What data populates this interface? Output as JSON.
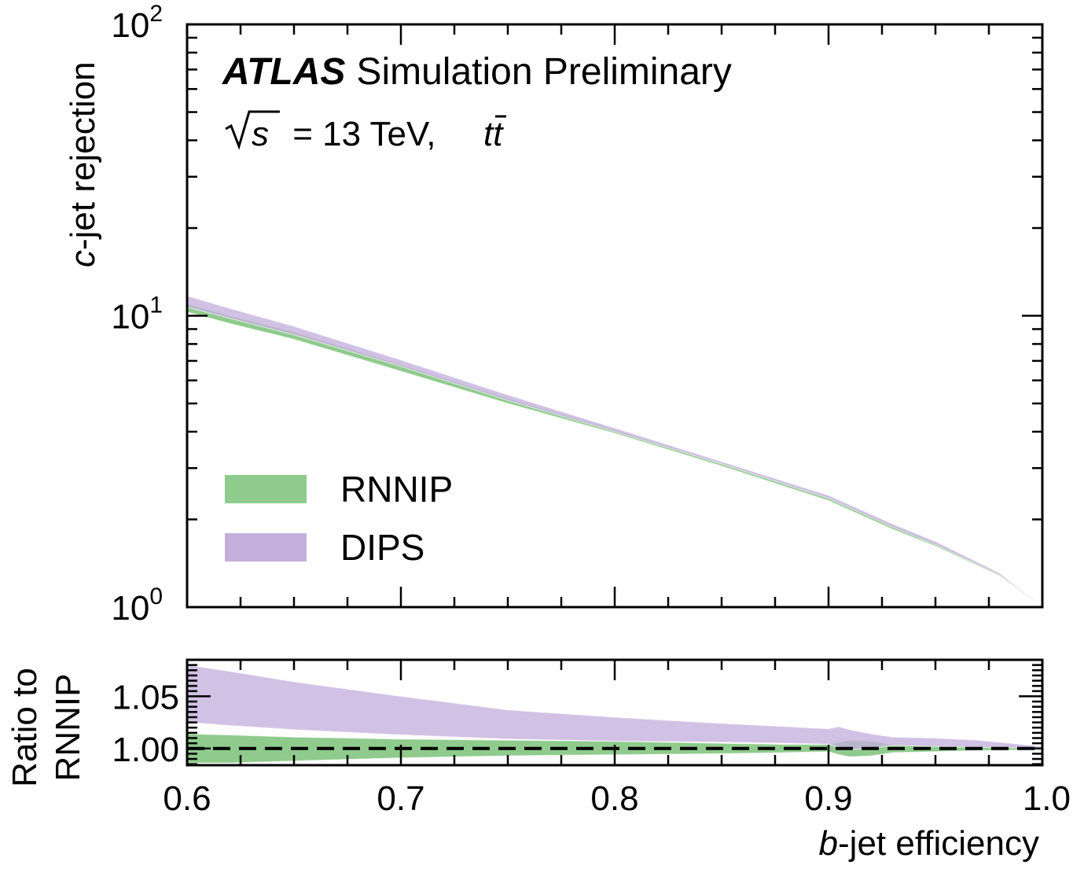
{
  "chart_data": [
    {
      "type": "area",
      "panel": "main",
      "ylabel_italic": "c",
      "ylabel_rest": "-jet rejection",
      "yscale": "log",
      "xlim": [
        0.6,
        1.0
      ],
      "ylim": [
        1,
        100
      ],
      "ytick_labels": [
        {
          "value": 1,
          "base": "10",
          "exp": "0"
        },
        {
          "value": 10,
          "base": "10",
          "exp": "1"
        },
        {
          "value": 100,
          "base": "10",
          "exp": "2"
        }
      ],
      "annotation": {
        "experiment": "ATLAS",
        "status": "Simulation Preliminary",
        "energy_sqrt": "s",
        "energy_rest": " = 13 TeV, ",
        "process": "tt"
      },
      "legend_placement": "lower-left",
      "x": [
        0.6,
        0.62,
        0.65,
        0.7,
        0.75,
        0.8,
        0.85,
        0.9,
        0.93,
        0.95,
        0.98,
        1.0
      ],
      "series": [
        {
          "name": "RNNIP",
          "color": "#8fcb8c",
          "lower": [
            10.3,
            9.4,
            8.3,
            6.45,
            5.0,
            3.95,
            3.05,
            2.32,
            1.85,
            1.62,
            1.28,
            1.0
          ],
          "upper": [
            11.0,
            10.0,
            8.8,
            6.8,
            5.2,
            4.05,
            3.12,
            2.38,
            1.9,
            1.66,
            1.3,
            1.0
          ]
        },
        {
          "name": "DIPS",
          "color": "#c4afdc",
          "lower": [
            10.7,
            9.8,
            8.6,
            6.7,
            5.12,
            4.0,
            3.1,
            2.36,
            1.88,
            1.64,
            1.29,
            1.0
          ],
          "upper": [
            11.7,
            10.6,
            9.2,
            7.05,
            5.35,
            4.12,
            3.16,
            2.42,
            1.93,
            1.68,
            1.31,
            1.0
          ]
        }
      ]
    },
    {
      "type": "area",
      "panel": "ratio",
      "xlabel_italic": "b",
      "xlabel_rest": "-jet efficiency",
      "ylabel_line1": "Ratio to",
      "ylabel_line2": "RNNIP",
      "xlim": [
        0.6,
        1.0
      ],
      "ylim": [
        0.984,
        1.085
      ],
      "xtick_labels": [
        "0.6",
        "0.7",
        "0.8",
        "0.9",
        "1.0"
      ],
      "ytick_labels": [
        "1.00",
        "1.05"
      ],
      "reference_line": 1.0,
      "x": [
        0.6,
        0.62,
        0.65,
        0.7,
        0.75,
        0.8,
        0.85,
        0.88,
        0.9,
        0.905,
        0.91,
        0.92,
        0.93,
        0.95,
        0.97,
        0.98,
        1.0
      ],
      "series": [
        {
          "name": "RNNIP",
          "color": "#8fcb8c",
          "lower": [
            0.986,
            0.986,
            0.988,
            0.991,
            0.993,
            0.994,
            0.995,
            0.996,
            0.997,
            0.994,
            0.992,
            0.993,
            0.996,
            0.997,
            0.998,
            0.998,
            0.999
          ],
          "upper": [
            1.014,
            1.013,
            1.011,
            1.009,
            1.008,
            1.007,
            1.005,
            1.004,
            1.004,
            1.006,
            1.008,
            1.007,
            1.004,
            1.003,
            1.002,
            1.002,
            1.001
          ]
        },
        {
          "name": "DIPS",
          "color": "#c4afdc",
          "lower": [
            1.025,
            1.022,
            1.018,
            1.013,
            1.009,
            1.007,
            1.006,
            1.005,
            1.004,
            1.001,
            0.999,
            1.0,
            1.003,
            1.002,
            1.001,
            1.001,
            1.0
          ],
          "upper": [
            1.08,
            1.074,
            1.064,
            1.05,
            1.037,
            1.03,
            1.024,
            1.021,
            1.019,
            1.021,
            1.018,
            1.014,
            1.011,
            1.01,
            1.008,
            1.006,
            1.002
          ]
        }
      ]
    }
  ]
}
